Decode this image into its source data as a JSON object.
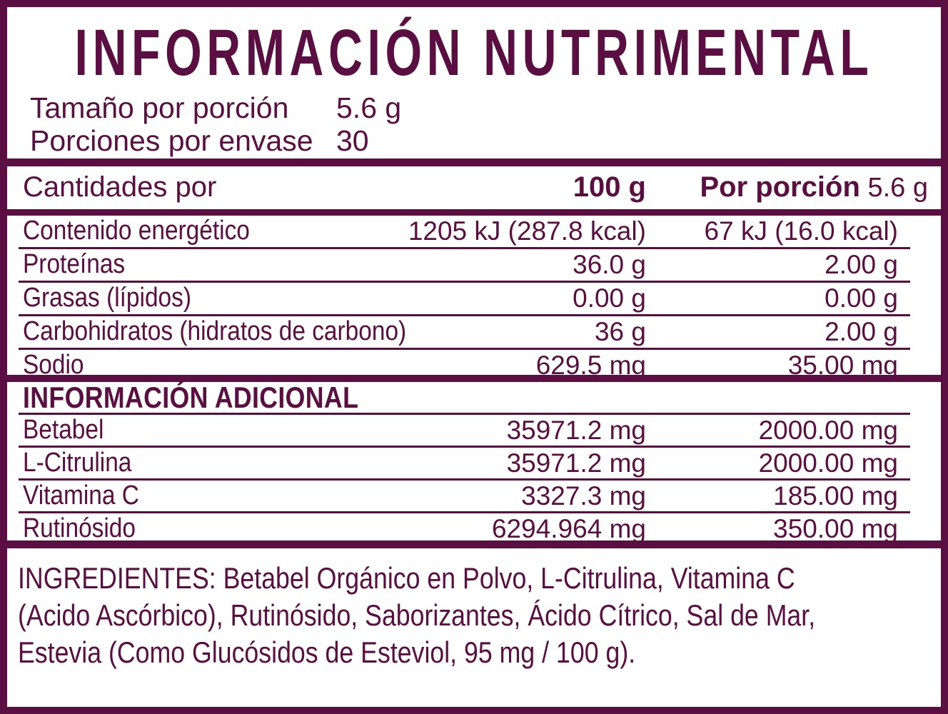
{
  "colors": {
    "maroon": "#5A0E41",
    "background": "#FFFFFF"
  },
  "title": "INFORMACIÓN NUTRIMENTAL",
  "serving": {
    "rows": [
      {
        "label": "Tamaño por porción",
        "value": "5.6 g"
      },
      {
        "label": "Porciones por envase",
        "value": "30"
      }
    ]
  },
  "main_table": {
    "header": {
      "amounts_label": "Cantidades por",
      "col_100g": "100 g",
      "col_portion_bold": "Por porción",
      "col_portion_value": "5.6 g"
    },
    "rows": [
      {
        "label": "Contenido energético",
        "per_100g": "1205 kJ (287.8 kcal)",
        "per_portion": "67 kJ (16.0 kcal)"
      },
      {
        "label": "Proteínas",
        "per_100g": "36.0 g",
        "per_portion": "2.00 g"
      },
      {
        "label": "Grasas (lípidos)",
        "per_100g": "0.00 g",
        "per_portion": "0.00 g"
      },
      {
        "label": "Carbohidratos (hidratos de carbono)",
        "per_100g": "36 g",
        "per_portion": "2.00 g"
      },
      {
        "label": "Sodio",
        "per_100g": "629.5 mg",
        "per_portion": "35.00 mg"
      }
    ]
  },
  "additional": {
    "heading": "INFORMACIÓN ADICIONAL",
    "rows": [
      {
        "label": "Betabel",
        "per_100g": "35971.2 mg",
        "per_portion": "2000.00 mg"
      },
      {
        "label": "L-Citrulina",
        "per_100g": "35971.2 mg",
        "per_portion": "2000.00 mg"
      },
      {
        "label": "Vitamina C",
        "per_100g": "3327.3 mg",
        "per_portion": "185.00 mg"
      },
      {
        "label": "Rutinósido",
        "per_100g": "6294.964 mg",
        "per_portion": "350.00 mg"
      }
    ]
  },
  "ingredients": {
    "lines": [
      "INGREDIENTES: Betabel Orgánico en Polvo, L-Citrulina, Vitamina C",
      "(Acido Ascórbico), Rutinósido, Saborizantes, Ácido Cítrico, Sal de Mar,",
      "Estevia (Como Glucósidos de Esteviol, 95 mg / 100 g)."
    ]
  }
}
